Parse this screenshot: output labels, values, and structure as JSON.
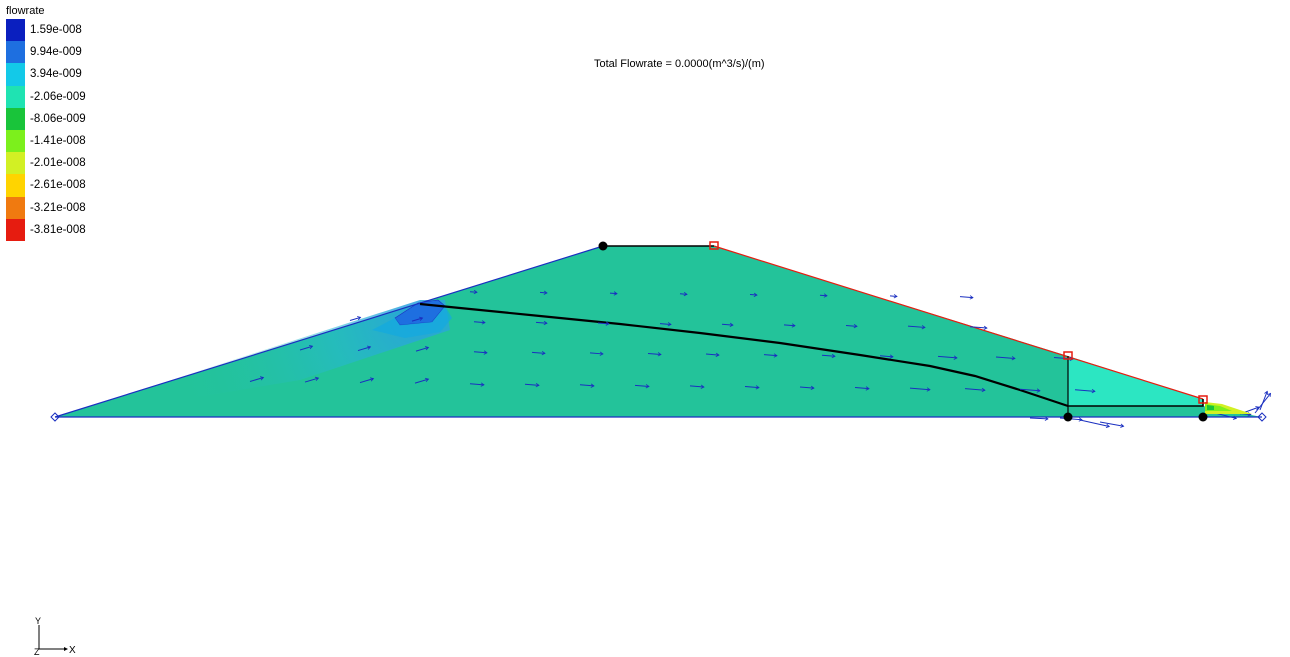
{
  "legend": {
    "title": "flowrate",
    "entries": [
      {
        "label": "1.59e-008",
        "color": "#0a1fbf"
      },
      {
        "label": "9.94e-009",
        "color": "#1e6fe0"
      },
      {
        "label": "3.94e-009",
        "color": "#13c9e8"
      },
      {
        "label": "-2.06e-009",
        "color": "#1fe3b2"
      },
      {
        "label": "-8.06e-009",
        "color": "#19c43a"
      },
      {
        "label": "-1.41e-008",
        "color": "#7cf01c"
      },
      {
        "label": "-2.01e-008",
        "color": "#d2f024"
      },
      {
        "label": "-2.61e-008",
        "color": "#ffd400"
      },
      {
        "label": "-3.21e-008",
        "color": "#f07a10"
      },
      {
        "label": "-3.81e-008",
        "color": "#e61c10"
      }
    ]
  },
  "annotation": {
    "total_flowrate": "Total Flowrate = 0.0000(m^3/s)/(m)"
  },
  "model": {
    "fill_main": "#23c39a",
    "fill_toe": "#2ce6c2",
    "vector_color": "#1a2fc0",
    "outline_color": "#1a2fc0",
    "seepage_face_color": "#e61c10",
    "phreatic_color": "#000000"
  },
  "axes": {
    "y_label": "Y",
    "z_label": "Z",
    "x_label": "X"
  }
}
